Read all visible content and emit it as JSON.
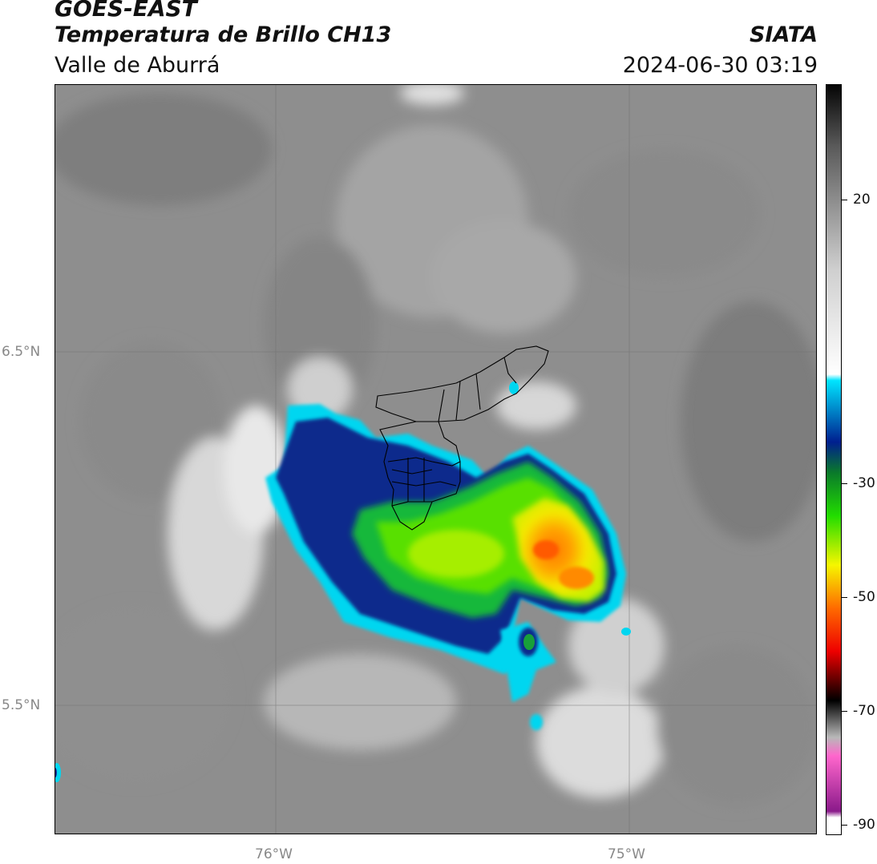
{
  "header": {
    "satellite": "GOES-EAST",
    "product": "Temperatura de Brillo CH13",
    "region": "Valle de Aburrá",
    "institution": "SIATA",
    "datetime": "2024-06-30 03:19"
  },
  "map": {
    "lat_labels": [
      "6.5°N",
      "5.5°N"
    ],
    "lon_labels": [
      "76°W",
      "75°W"
    ]
  },
  "colorbar": {
    "labels": [
      "20",
      "-30",
      "-50",
      "-70",
      "-90"
    ],
    "color_stops": [
      {
        "value": 30,
        "color": "#050505"
      },
      {
        "value": 20,
        "color": "#5a5a5a"
      },
      {
        "value": 0,
        "color": "#cfcfcf"
      },
      {
        "value": -17,
        "color": "#ffffff"
      },
      {
        "value": -18,
        "color": "#00e5ff"
      },
      {
        "value": -28,
        "color": "#001f8f"
      },
      {
        "value": -33,
        "color": "#0a7a2a"
      },
      {
        "value": -40,
        "color": "#22dd00"
      },
      {
        "value": -48,
        "color": "#f6f600"
      },
      {
        "value": -55,
        "color": "#ff6a00"
      },
      {
        "value": -62,
        "color": "#ee0000"
      },
      {
        "value": -68,
        "color": "#3a0000"
      },
      {
        "value": -70,
        "color": "#000000"
      },
      {
        "value": -76,
        "color": "#b8b8b8"
      },
      {
        "value": -79,
        "color": "#ff66cc"
      },
      {
        "value": -88,
        "color": "#8a1a8a"
      },
      {
        "value": -89,
        "color": "#ffffff"
      }
    ]
  }
}
